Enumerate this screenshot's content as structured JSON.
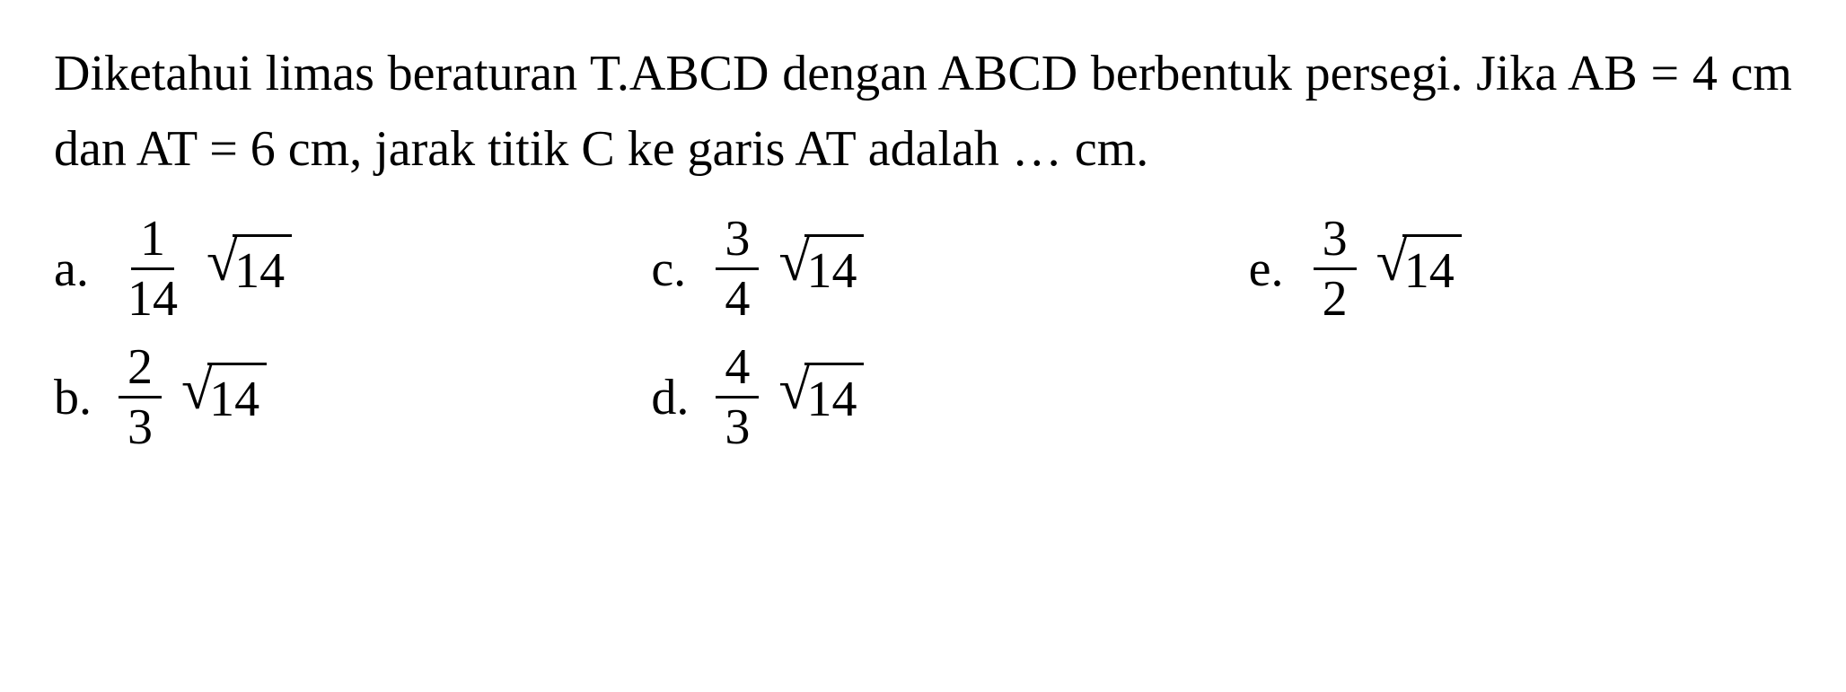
{
  "question": {
    "text": "Diketahui limas beraturan T.ABCD dengan ABCD berbentuk persegi. Jika AB = 4 cm dan AT = 6 cm, jarak titik C ke garis AT adalah … cm."
  },
  "options": {
    "a": {
      "label": "a.",
      "numerator": "1",
      "denominator": "14",
      "radicand": "14"
    },
    "b": {
      "label": "b.",
      "numerator": "2",
      "denominator": "3",
      "radicand": "14"
    },
    "c": {
      "label": "c.",
      "numerator": "3",
      "denominator": "4",
      "radicand": "14"
    },
    "d": {
      "label": "d.",
      "numerator": "4",
      "denominator": "3",
      "radicand": "14"
    },
    "e": {
      "label": "e.",
      "numerator": "3",
      "denominator": "2",
      "radicand": "14"
    }
  },
  "styling": {
    "background_color": "#ffffff",
    "text_color": "#000000",
    "font_family": "Times New Roman",
    "question_fontsize": 56,
    "option_fontsize": 56,
    "border_width": 3
  }
}
